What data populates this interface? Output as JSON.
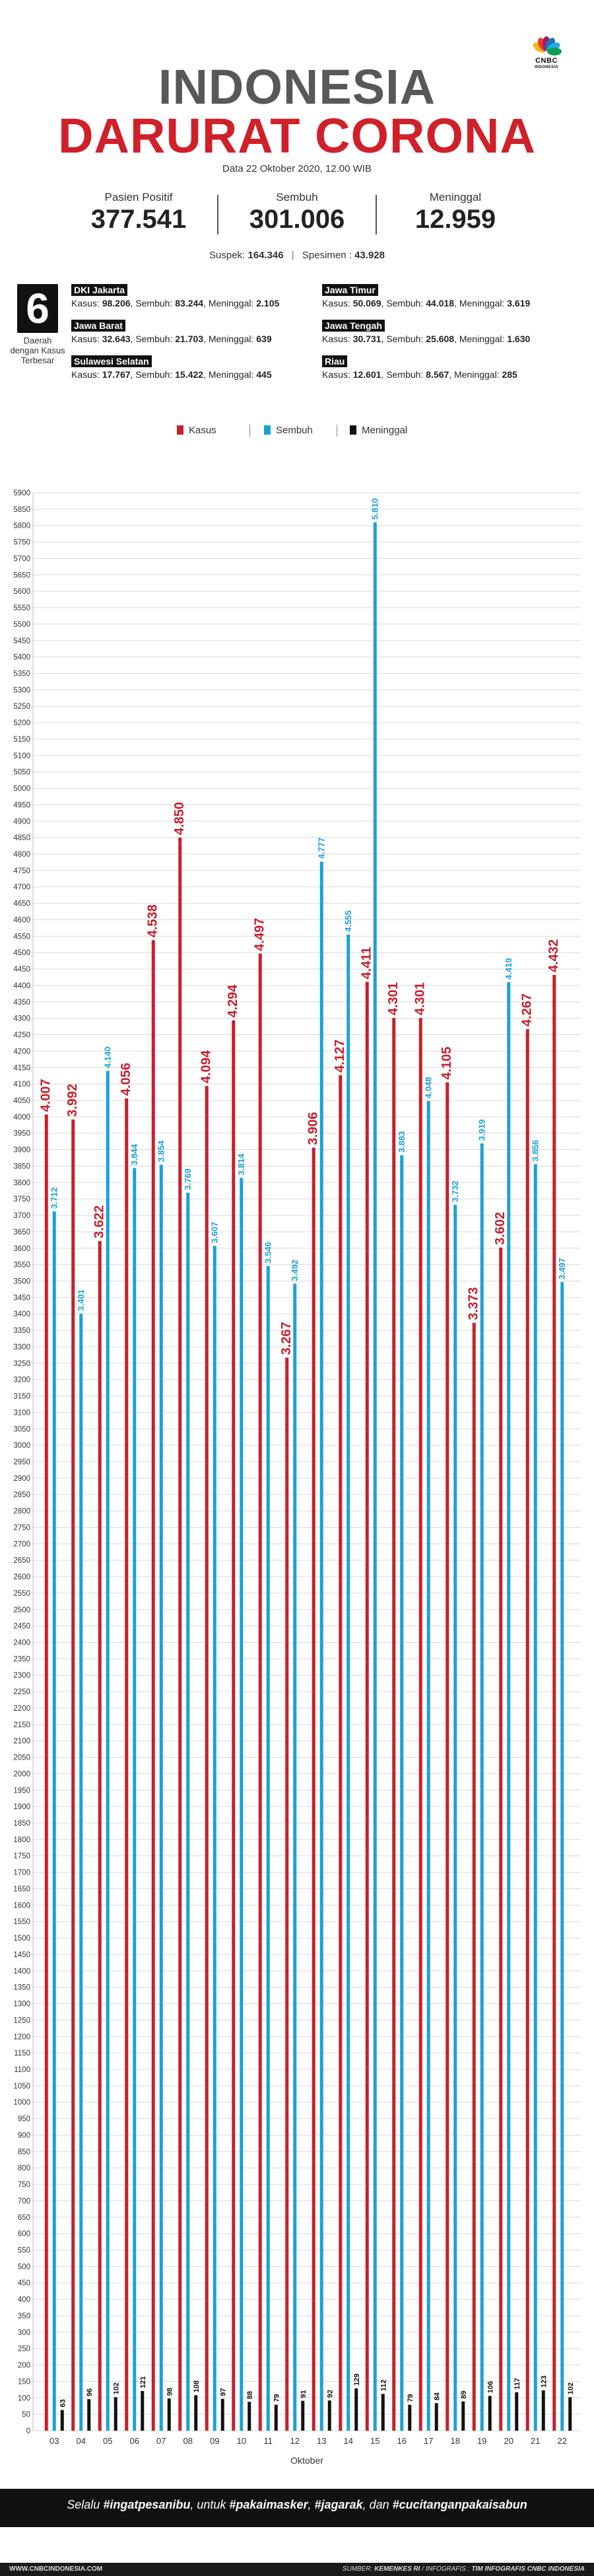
{
  "brand": {
    "logo_text": "CNBC",
    "logo_sub": "INDONESIA",
    "peacock_colors": [
      "#f5b51e",
      "#ef3b24",
      "#9e1f63",
      "#1d75bc",
      "#27a9e1",
      "#0f9d58"
    ]
  },
  "header": {
    "title_line1": "INDONESIA",
    "title_line2": "DARURAT CORONA",
    "date": "Data 22 Oktober 2020, 12.00 WIB"
  },
  "stats": [
    {
      "label": "Pasien Positif",
      "value": "377.541"
    },
    {
      "label": "Sembuh",
      "value": "301.006"
    },
    {
      "label": "Meninggal",
      "value": "12.959"
    }
  ],
  "suspek": {
    "label": "Suspek:",
    "value": "164.346",
    "spesimen_label": "Spesimen :",
    "spesimen_value": "43.928"
  },
  "top_regions": {
    "count": "6",
    "label": "Daerah dengan Kasus Terbesar",
    "items": [
      {
        "name": "DKI Jakarta",
        "kasus": "98.206",
        "sembuh": "83.244",
        "meninggal": "2.105"
      },
      {
        "name": "Jawa Barat",
        "kasus": "32.643",
        "sembuh": "21.703",
        "meninggal": "639"
      },
      {
        "name": "Sulawesi Selatan",
        "kasus": "17.767",
        "sembuh": "15.422",
        "meninggal": "445"
      },
      {
        "name": "Jawa Timur",
        "kasus": "50.069",
        "sembuh": "44.018",
        "meninggal": "3.619"
      },
      {
        "name": "Jawa Tengah",
        "kasus": "30.731",
        "sembuh": "25.608",
        "meninggal": "1.630"
      },
      {
        "name": "Riau",
        "kasus": "12.601",
        "sembuh": "8.567",
        "meninggal": "285"
      }
    ],
    "kasus_label": "Kasus:",
    "sembuh_label": "Sembuh:",
    "meninggal_label": "Meninggal:"
  },
  "legend": [
    {
      "name": "Kasus",
      "color": "#c8202c"
    },
    {
      "name": "Sembuh",
      "color": "#1ba1d8"
    },
    {
      "name": "Meninggal",
      "color": "#111111"
    }
  ],
  "chart_data": {
    "type": "bar",
    "xlabel": "Oktober",
    "ylabel": "",
    "ylim": [
      0,
      5900
    ],
    "ytick_step": 50,
    "categories": [
      "03",
      "04",
      "05",
      "06",
      "07",
      "08",
      "09",
      "10",
      "11",
      "12",
      "13",
      "14",
      "15",
      "16",
      "17",
      "18",
      "19",
      "20",
      "21",
      "22"
    ],
    "series": [
      {
        "name": "Kasus",
        "color": "#c8202c",
        "values": [
          4007,
          3992,
          3622,
          4056,
          4538,
          4850,
          4094,
          4294,
          4497,
          3267,
          3906,
          4127,
          4411,
          4301,
          4301,
          4105,
          3373,
          3602,
          4267,
          4432
        ],
        "labels": [
          "4.007",
          "3.992",
          "3.622",
          "4.056",
          "4.538",
          "4.850",
          "4.094",
          "4.294",
          "4.497",
          "3.267",
          "3.906",
          "4.127",
          "4.411",
          "4.301",
          "4.301",
          "4.105",
          "3.373",
          "3.602",
          "4.267",
          "4.432"
        ]
      },
      {
        "name": "Sembuh",
        "color": "#1ba1d8",
        "values": [
          3712,
          3401,
          4140,
          3844,
          3854,
          3769,
          3607,
          3814,
          3546,
          3492,
          4777,
          4555,
          5810,
          3883,
          4048,
          3732,
          3919,
          4410,
          3856,
          3497
        ],
        "labels": [
          "3.712",
          "3.401",
          "4.140",
          "3.844",
          "3.854",
          "3.769",
          "3.607",
          "3.814",
          "3.546",
          "3.492",
          "4.777",
          "4.555",
          "5.810",
          "3.883",
          "4.048",
          "3.732",
          "3.919",
          "4.410",
          "3.856",
          "3.497"
        ]
      },
      {
        "name": "Meninggal",
        "color": "#111111",
        "values": [
          63,
          96,
          102,
          121,
          98,
          108,
          97,
          88,
          79,
          91,
          92,
          129,
          112,
          79,
          84,
          89,
          106,
          117,
          123,
          102
        ],
        "labels": [
          "63",
          "96",
          "102",
          "121",
          "98",
          "108",
          "97",
          "88",
          "79",
          "91",
          "92",
          "129",
          "112",
          "79",
          "84",
          "89",
          "106",
          "117",
          "123",
          "102"
        ]
      }
    ]
  },
  "footer": {
    "slogan_prefix": "Selalu",
    "tag1": "#ingatpesanibu",
    "mid": ", untuk",
    "tag2": "#pakaimasker",
    "comma1": ",",
    "tag3": "#jagarak",
    "dan": ", dan",
    "tag4": "#cucitanganpakaisabun",
    "website": "WWW.CNBCINDONESIA.COM",
    "source_label": "SUMBER:",
    "source_value": "KEMENKES RI",
    "infografis_label": "/ INFOGRAFIS :",
    "infografis_value": "TIM INFOGRAFIS CNBC INDONESIA"
  }
}
